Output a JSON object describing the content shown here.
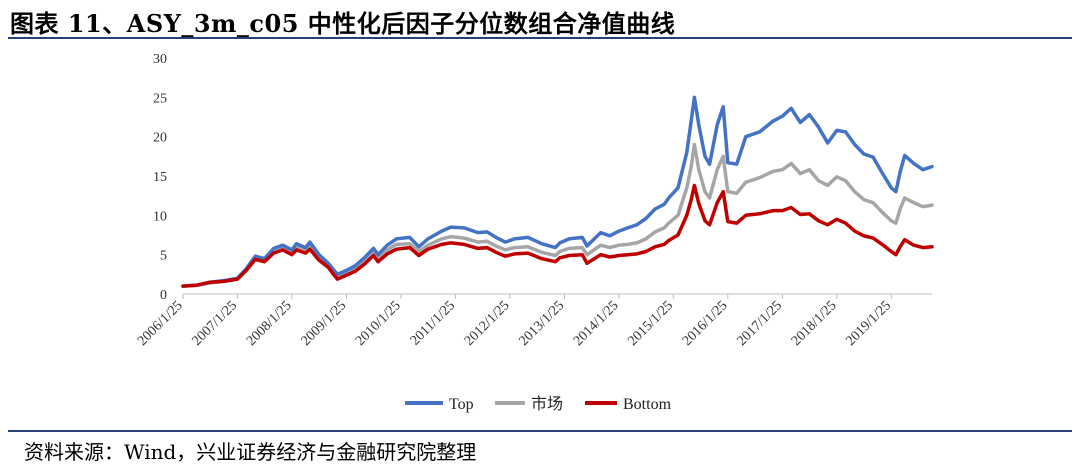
{
  "title": "图表 11、ASY_3m_c05 中性化后因子分位数组合净值曲线",
  "source": "资料来源：Wind，兴业证券经济与金融研究院整理",
  "chart_data": {
    "type": "line",
    "title": "",
    "xlabel": "",
    "ylabel": "",
    "ylim": [
      0,
      30
    ],
    "yticks": [
      0,
      5,
      10,
      15,
      20,
      25,
      30
    ],
    "xticks": [
      "2006/1/25",
      "2007/1/25",
      "2008/1/25",
      "2009/1/25",
      "2010/1/25",
      "2011/1/25",
      "2012/1/25",
      "2013/1/25",
      "2014/1/25",
      "2015/1/25",
      "2016/1/25",
      "2017/1/25",
      "2018/1/25",
      "2019/1/25"
    ],
    "x_range": [
      "2006/1/25",
      "2019/10/25"
    ],
    "grid": false,
    "legend_position": "bottom",
    "series": [
      {
        "name": "Top",
        "color": "#4472c4",
        "points": [
          [
            "2006/1/25",
            1.0
          ],
          [
            "2006/4/25",
            1.1
          ],
          [
            "2006/7/25",
            1.5
          ],
          [
            "2006/10/25",
            1.7
          ],
          [
            "2007/1/25",
            2.0
          ],
          [
            "2007/3/25",
            3.2
          ],
          [
            "2007/5/25",
            4.8
          ],
          [
            "2007/7/25",
            4.5
          ],
          [
            "2007/9/25",
            5.8
          ],
          [
            "2007/11/25",
            6.2
          ],
          [
            "2008/1/25",
            5.6
          ],
          [
            "2008/2/25",
            6.4
          ],
          [
            "2008/4/25",
            5.9
          ],
          [
            "2008/5/25",
            6.6
          ],
          [
            "2008/7/25",
            5.0
          ],
          [
            "2008/9/25",
            3.9
          ],
          [
            "2008/10/25",
            3.2
          ],
          [
            "2008/11/25",
            2.5
          ],
          [
            "2009/1/25",
            3.0
          ],
          [
            "2009/3/25",
            3.6
          ],
          [
            "2009/5/25",
            4.6
          ],
          [
            "2009/7/25",
            5.8
          ],
          [
            "2009/8/25",
            5.0
          ],
          [
            "2009/10/25",
            6.2
          ],
          [
            "2009/12/25",
            7.0
          ],
          [
            "2010/3/25",
            7.2
          ],
          [
            "2010/5/25",
            6.0
          ],
          [
            "2010/7/25",
            7.0
          ],
          [
            "2010/10/25",
            8.0
          ],
          [
            "2010/12/25",
            8.5
          ],
          [
            "2011/3/25",
            8.4
          ],
          [
            "2011/6/25",
            7.8
          ],
          [
            "2011/8/25",
            7.9
          ],
          [
            "2011/10/25",
            7.2
          ],
          [
            "2011/12/25",
            6.6
          ],
          [
            "2012/2/25",
            7.0
          ],
          [
            "2012/5/25",
            7.2
          ],
          [
            "2012/8/25",
            6.4
          ],
          [
            "2012/11/25",
            5.9
          ],
          [
            "2012/12/25",
            6.5
          ],
          [
            "2013/2/25",
            7.0
          ],
          [
            "2013/5/25",
            7.2
          ],
          [
            "2013/6/25",
            6.1
          ],
          [
            "2013/9/25",
            7.8
          ],
          [
            "2013/11/25",
            7.4
          ],
          [
            "2014/1/25",
            8.0
          ],
          [
            "2014/3/25",
            8.4
          ],
          [
            "2014/5/25",
            8.8
          ],
          [
            "2014/7/25",
            9.6
          ],
          [
            "2014/9/25",
            10.8
          ],
          [
            "2014/11/25",
            11.4
          ],
          [
            "2014/12/25",
            12.2
          ],
          [
            "2015/2/25",
            13.5
          ],
          [
            "2015/4/25",
            18.0
          ],
          [
            "2015/5/25",
            22.0
          ],
          [
            "2015/6/15",
            25.0
          ],
          [
            "2015/7/15",
            21.5
          ],
          [
            "2015/8/25",
            17.5
          ],
          [
            "2015/9/25",
            16.5
          ],
          [
            "2015/11/15",
            21.5
          ],
          [
            "2015/12/25",
            23.8
          ],
          [
            "2016/1/25",
            16.7
          ],
          [
            "2016/3/25",
            16.5
          ],
          [
            "2016/5/25",
            20.0
          ],
          [
            "2016/8/25",
            20.6
          ],
          [
            "2016/11/25",
            22.0
          ],
          [
            "2017/1/25",
            22.6
          ],
          [
            "2017/3/25",
            23.6
          ],
          [
            "2017/5/25",
            21.8
          ],
          [
            "2017/7/25",
            22.8
          ],
          [
            "2017/9/25",
            21.2
          ],
          [
            "2017/11/25",
            19.2
          ],
          [
            "2018/1/25",
            20.8
          ],
          [
            "2018/3/25",
            20.6
          ],
          [
            "2018/5/25",
            19.0
          ],
          [
            "2018/7/25",
            17.8
          ],
          [
            "2018/9/25",
            17.4
          ],
          [
            "2018/11/25",
            15.4
          ],
          [
            "2019/1/25",
            13.5
          ],
          [
            "2019/2/25",
            13.0
          ],
          [
            "2019/3/25",
            15.5
          ],
          [
            "2019/4/25",
            17.6
          ],
          [
            "2019/6/25",
            16.6
          ],
          [
            "2019/8/25",
            15.8
          ],
          [
            "2019/10/25",
            16.2
          ]
        ]
      },
      {
        "name": "市场",
        "color": "#a6a6a6",
        "points": [
          [
            "2006/1/25",
            1.0
          ],
          [
            "2006/4/25",
            1.1
          ],
          [
            "2006/7/25",
            1.4
          ],
          [
            "2006/10/25",
            1.6
          ],
          [
            "2007/1/25",
            1.9
          ],
          [
            "2007/3/25",
            3.0
          ],
          [
            "2007/5/25",
            4.5
          ],
          [
            "2007/7/25",
            4.2
          ],
          [
            "2007/9/25",
            5.4
          ],
          [
            "2007/11/25",
            5.8
          ],
          [
            "2008/1/25",
            5.2
          ],
          [
            "2008/2/25",
            6.0
          ],
          [
            "2008/4/25",
            5.5
          ],
          [
            "2008/5/25",
            6.1
          ],
          [
            "2008/7/25",
            4.6
          ],
          [
            "2008/9/25",
            3.6
          ],
          [
            "2008/10/25",
            3.0
          ],
          [
            "2008/11/25",
            2.3
          ],
          [
            "2009/1/25",
            2.8
          ],
          [
            "2009/3/25",
            3.3
          ],
          [
            "2009/5/25",
            4.2
          ],
          [
            "2009/7/25",
            5.3
          ],
          [
            "2009/8/25",
            4.6
          ],
          [
            "2009/10/25",
            5.6
          ],
          [
            "2009/12/25",
            6.3
          ],
          [
            "2010/3/25",
            6.4
          ],
          [
            "2010/5/25",
            5.4
          ],
          [
            "2010/7/25",
            6.2
          ],
          [
            "2010/10/25",
            7.0
          ],
          [
            "2010/12/25",
            7.3
          ],
          [
            "2011/3/25",
            7.1
          ],
          [
            "2011/6/25",
            6.6
          ],
          [
            "2011/8/25",
            6.7
          ],
          [
            "2011/10/25",
            6.1
          ],
          [
            "2011/12/25",
            5.6
          ],
          [
            "2012/2/25",
            5.9
          ],
          [
            "2012/5/25",
            6.0
          ],
          [
            "2012/8/25",
            5.3
          ],
          [
            "2012/11/25",
            4.9
          ],
          [
            "2012/12/25",
            5.4
          ],
          [
            "2013/2/25",
            5.8
          ],
          [
            "2013/5/25",
            5.9
          ],
          [
            "2013/6/25",
            5.0
          ],
          [
            "2013/9/25",
            6.2
          ],
          [
            "2013/11/25",
            5.9
          ],
          [
            "2014/1/25",
            6.2
          ],
          [
            "2014/3/25",
            6.3
          ],
          [
            "2014/5/25",
            6.5
          ],
          [
            "2014/7/25",
            7.0
          ],
          [
            "2014/9/25",
            7.9
          ],
          [
            "2014/11/25",
            8.4
          ],
          [
            "2014/12/25",
            9.0
          ],
          [
            "2015/2/25",
            10.0
          ],
          [
            "2015/4/25",
            13.5
          ],
          [
            "2015/5/25",
            16.2
          ],
          [
            "2015/6/15",
            19.0
          ],
          [
            "2015/7/15",
            15.8
          ],
          [
            "2015/8/25",
            13.0
          ],
          [
            "2015/9/25",
            12.2
          ],
          [
            "2015/11/15",
            15.8
          ],
          [
            "2015/12/25",
            17.5
          ],
          [
            "2016/1/25",
            13.0
          ],
          [
            "2016/3/25",
            12.8
          ],
          [
            "2016/5/25",
            14.2
          ],
          [
            "2016/8/25",
            14.8
          ],
          [
            "2016/11/25",
            15.6
          ],
          [
            "2017/1/25",
            15.8
          ],
          [
            "2017/3/25",
            16.6
          ],
          [
            "2017/5/25",
            15.3
          ],
          [
            "2017/7/25",
            15.8
          ],
          [
            "2017/9/25",
            14.4
          ],
          [
            "2017/11/25",
            13.8
          ],
          [
            "2018/1/25",
            14.9
          ],
          [
            "2018/3/25",
            14.4
          ],
          [
            "2018/5/25",
            13.0
          ],
          [
            "2018/7/25",
            12.0
          ],
          [
            "2018/9/25",
            11.6
          ],
          [
            "2018/11/25",
            10.4
          ],
          [
            "2019/1/25",
            9.3
          ],
          [
            "2019/2/25",
            9.0
          ],
          [
            "2019/3/25",
            10.8
          ],
          [
            "2019/4/25",
            12.2
          ],
          [
            "2019/6/25",
            11.6
          ],
          [
            "2019/8/25",
            11.1
          ],
          [
            "2019/10/25",
            11.3
          ]
        ]
      },
      {
        "name": "Bottom",
        "color": "#c00000",
        "points": [
          [
            "2006/1/25",
            1.0
          ],
          [
            "2006/4/25",
            1.1
          ],
          [
            "2006/7/25",
            1.5
          ],
          [
            "2006/10/25",
            1.6
          ],
          [
            "2007/1/25",
            1.9
          ],
          [
            "2007/3/25",
            3.0
          ],
          [
            "2007/5/25",
            4.4
          ],
          [
            "2007/7/25",
            4.1
          ],
          [
            "2007/9/25",
            5.2
          ],
          [
            "2007/11/25",
            5.6
          ],
          [
            "2008/1/25",
            5.0
          ],
          [
            "2008/2/25",
            5.6
          ],
          [
            "2008/4/25",
            5.2
          ],
          [
            "2008/5/25",
            5.7
          ],
          [
            "2008/7/25",
            4.3
          ],
          [
            "2008/9/25",
            3.4
          ],
          [
            "2008/10/25",
            2.6
          ],
          [
            "2008/11/25",
            1.9
          ],
          [
            "2009/1/25",
            2.4
          ],
          [
            "2009/3/25",
            2.9
          ],
          [
            "2009/5/25",
            3.8
          ],
          [
            "2009/7/25",
            4.9
          ],
          [
            "2009/8/25",
            4.1
          ],
          [
            "2009/10/25",
            5.1
          ],
          [
            "2009/12/25",
            5.7
          ],
          [
            "2010/3/25",
            5.9
          ],
          [
            "2010/5/25",
            4.9
          ],
          [
            "2010/7/25",
            5.7
          ],
          [
            "2010/10/25",
            6.3
          ],
          [
            "2010/12/25",
            6.5
          ],
          [
            "2011/3/25",
            6.3
          ],
          [
            "2011/6/25",
            5.8
          ],
          [
            "2011/8/25",
            5.9
          ],
          [
            "2011/10/25",
            5.3
          ],
          [
            "2011/12/25",
            4.8
          ],
          [
            "2012/2/25",
            5.1
          ],
          [
            "2012/5/25",
            5.2
          ],
          [
            "2012/8/25",
            4.5
          ],
          [
            "2012/11/25",
            4.1
          ],
          [
            "2012/12/25",
            4.6
          ],
          [
            "2013/2/25",
            4.9
          ],
          [
            "2013/5/25",
            5.0
          ],
          [
            "2013/6/25",
            3.9
          ],
          [
            "2013/9/25",
            5.0
          ],
          [
            "2013/11/25",
            4.7
          ],
          [
            "2014/1/25",
            4.9
          ],
          [
            "2014/3/25",
            5.0
          ],
          [
            "2014/5/25",
            5.1
          ],
          [
            "2014/7/25",
            5.4
          ],
          [
            "2014/9/25",
            6.0
          ],
          [
            "2014/11/25",
            6.3
          ],
          [
            "2014/12/25",
            6.8
          ],
          [
            "2015/2/25",
            7.5
          ],
          [
            "2015/4/25",
            10.0
          ],
          [
            "2015/5/25",
            12.0
          ],
          [
            "2015/6/15",
            13.8
          ],
          [
            "2015/7/15",
            11.5
          ],
          [
            "2015/8/25",
            9.3
          ],
          [
            "2015/9/25",
            8.8
          ],
          [
            "2015/11/15",
            11.6
          ],
          [
            "2015/12/25",
            13.0
          ],
          [
            "2016/1/25",
            9.2
          ],
          [
            "2016/3/25",
            9.0
          ],
          [
            "2016/5/25",
            10.0
          ],
          [
            "2016/8/25",
            10.2
          ],
          [
            "2016/11/25",
            10.6
          ],
          [
            "2017/1/25",
            10.6
          ],
          [
            "2017/3/25",
            11.0
          ],
          [
            "2017/5/25",
            10.1
          ],
          [
            "2017/7/25",
            10.2
          ],
          [
            "2017/9/25",
            9.3
          ],
          [
            "2017/11/25",
            8.8
          ],
          [
            "2018/1/25",
            9.5
          ],
          [
            "2018/3/25",
            9.0
          ],
          [
            "2018/5/25",
            8.0
          ],
          [
            "2018/7/25",
            7.4
          ],
          [
            "2018/9/25",
            7.1
          ],
          [
            "2018/11/25",
            6.3
          ],
          [
            "2019/1/25",
            5.4
          ],
          [
            "2019/2/25",
            5.0
          ],
          [
            "2019/3/25",
            6.0
          ],
          [
            "2019/4/25",
            6.9
          ],
          [
            "2019/6/25",
            6.2
          ],
          [
            "2019/8/25",
            5.9
          ],
          [
            "2019/10/25",
            6.0
          ]
        ]
      }
    ]
  }
}
